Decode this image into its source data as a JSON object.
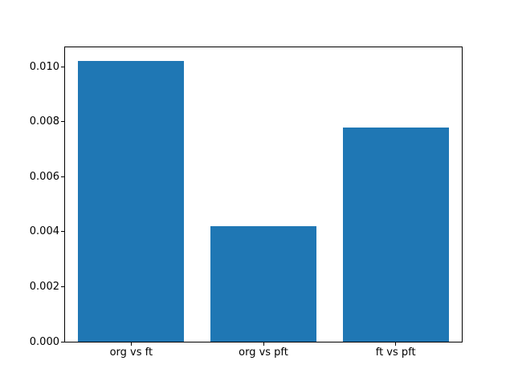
{
  "figure": {
    "background_color": "#ffffff",
    "frame_color": "#000000"
  },
  "chart_data": {
    "type": "bar",
    "categories": [
      "org vs ft",
      "org vs pft",
      "ft vs pft"
    ],
    "values": [
      0.0102,
      0.0042,
      0.0078
    ],
    "title": "",
    "xlabel": "",
    "ylabel": "",
    "ylim": [
      0,
      0.01071
    ],
    "yticks": [
      0.0,
      0.002,
      0.004,
      0.006,
      0.008,
      0.01
    ],
    "ytick_labels": [
      "0.000",
      "0.002",
      "0.004",
      "0.006",
      "0.008",
      "0.010"
    ],
    "grid": false,
    "legend": false,
    "bar_color": "#1f77b4",
    "bar_width_fraction": 0.8
  }
}
